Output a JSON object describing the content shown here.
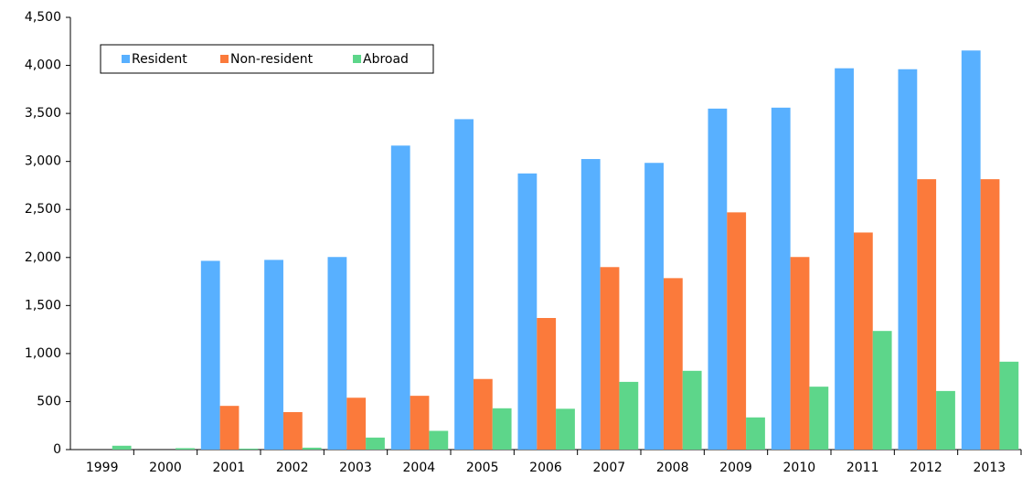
{
  "chart_data": {
    "type": "bar",
    "categories": [
      "1999",
      "2000",
      "2001",
      "2002",
      "2003",
      "2004",
      "2005",
      "2006",
      "2007",
      "2008",
      "2009",
      "2010",
      "2011",
      "2012",
      "2013"
    ],
    "series": [
      {
        "name": "Resident",
        "color": "#58b0ff",
        "values": [
          0,
          0,
          1965,
          1975,
          2005,
          3165,
          3440,
          2875,
          3025,
          2985,
          3550,
          3560,
          3970,
          3960,
          4155
        ]
      },
      {
        "name": "Non-resident",
        "color": "#fb7a3b",
        "values": [
          0,
          0,
          455,
          390,
          540,
          560,
          735,
          1370,
          1900,
          1785,
          2470,
          2005,
          2260,
          2815,
          2815
        ]
      },
      {
        "name": "Abroad",
        "color": "#5dd68a",
        "values": [
          40,
          15,
          10,
          20,
          125,
          195,
          430,
          425,
          705,
          820,
          335,
          655,
          1235,
          610,
          915
        ]
      }
    ],
    "ylim": [
      0,
      4500
    ],
    "yticks": [
      0,
      500,
      {
        "value": 1000,
        "label": "1,000"
      },
      {
        "value": 1500,
        "label": "1,500"
      },
      {
        "value": 2000,
        "label": "2,000"
      },
      {
        "value": 2500,
        "label": "2,500"
      },
      {
        "value": 3000,
        "label": "3,000"
      },
      {
        "value": 3500,
        "label": "3,500"
      },
      {
        "value": 4000,
        "label": "4,000"
      },
      {
        "value": 4500,
        "label": "4,500"
      }
    ],
    "grid": false,
    "legend": "top-left"
  }
}
